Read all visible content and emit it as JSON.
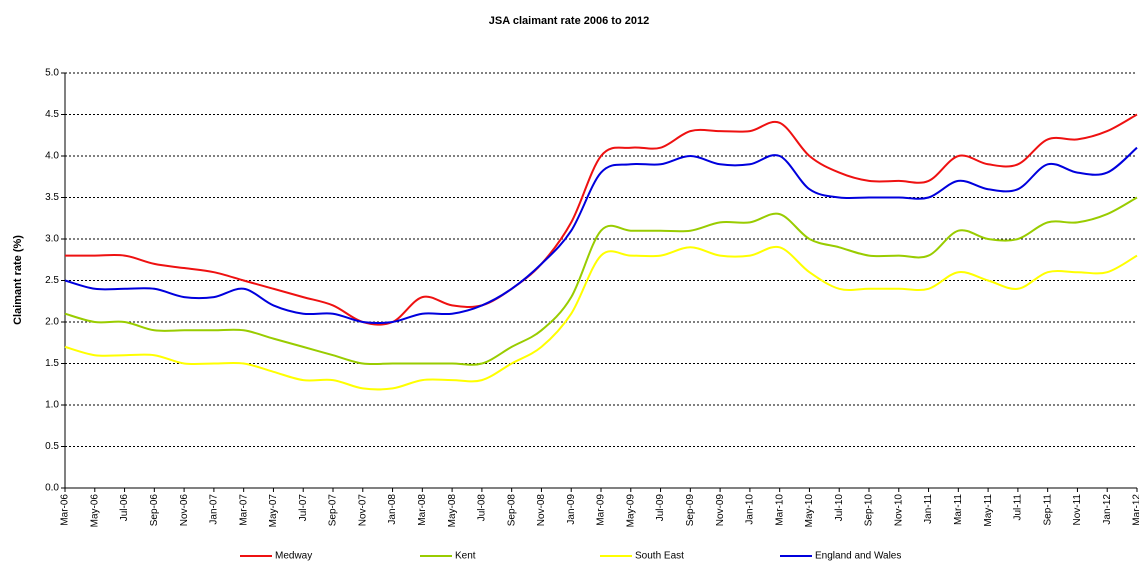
{
  "chart_data": {
    "type": "line",
    "title": "JSA claimant rate 2006 to 2012",
    "y_label": "Claimant rate (%)",
    "categories": [
      "Mar-06",
      "May-06",
      "Jul-06",
      "Sep-06",
      "Nov-06",
      "Jan-07",
      "Mar-07",
      "May-07",
      "Jul-07",
      "Sep-07",
      "Nov-07",
      "Jan-08",
      "Mar-08",
      "May-08",
      "Jul-08",
      "Sep-08",
      "Nov-08",
      "Jan-09",
      "Mar-09",
      "May-09",
      "Jul-09",
      "Sep-09",
      "Nov-09",
      "Jan-10",
      "Mar-10",
      "May-10",
      "Jul-10",
      "Sep-10",
      "Nov-10",
      "Jan-11",
      "Mar-11",
      "May-11",
      "Jul-11",
      "Sep-11",
      "Nov-11",
      "Jan-12",
      "Mar-12"
    ],
    "series": [
      {
        "name": "Medway",
        "color": "#ee1111",
        "values": [
          2.8,
          2.8,
          2.8,
          2.7,
          2.65,
          2.6,
          2.5,
          2.4,
          2.3,
          2.2,
          2.0,
          2.0,
          2.3,
          2.2,
          2.2,
          2.4,
          2.7,
          3.2,
          4.0,
          4.1,
          4.1,
          4.3,
          4.3,
          4.3,
          4.4,
          4.0,
          3.8,
          3.7,
          3.7,
          3.7,
          4.0,
          3.9,
          3.9,
          4.2,
          4.2,
          4.3,
          4.5
        ]
      },
      {
        "name": "Kent",
        "color": "#99cc00",
        "values": [
          2.1,
          2.0,
          2.0,
          1.9,
          1.9,
          1.9,
          1.9,
          1.8,
          1.7,
          1.6,
          1.5,
          1.5,
          1.5,
          1.5,
          1.5,
          1.7,
          1.9,
          2.3,
          3.1,
          3.1,
          3.1,
          3.1,
          3.2,
          3.2,
          3.3,
          3.0,
          2.9,
          2.8,
          2.8,
          2.8,
          3.1,
          3.0,
          3.0,
          3.2,
          3.2,
          3.3,
          3.5
        ]
      },
      {
        "name": "South East",
        "color": "#ffff00",
        "values": [
          1.7,
          1.6,
          1.6,
          1.6,
          1.5,
          1.5,
          1.5,
          1.4,
          1.3,
          1.3,
          1.2,
          1.2,
          1.3,
          1.3,
          1.3,
          1.5,
          1.7,
          2.1,
          2.8,
          2.8,
          2.8,
          2.9,
          2.8,
          2.8,
          2.9,
          2.6,
          2.4,
          2.4,
          2.4,
          2.4,
          2.6,
          2.5,
          2.4,
          2.6,
          2.6,
          2.6,
          2.8
        ]
      },
      {
        "name": "England and Wales",
        "color": "#0000dd",
        "values": [
          2.5,
          2.4,
          2.4,
          2.4,
          2.3,
          2.3,
          2.4,
          2.2,
          2.1,
          2.1,
          2.0,
          2.0,
          2.1,
          2.1,
          2.2,
          2.4,
          2.7,
          3.1,
          3.8,
          3.9,
          3.9,
          4.0,
          3.9,
          3.9,
          4.0,
          3.6,
          3.5,
          3.5,
          3.5,
          3.5,
          3.7,
          3.6,
          3.6,
          3.9,
          3.8,
          3.8,
          4.1
        ]
      }
    ],
    "ylim": [
      0,
      5
    ],
    "yticks": [
      {
        "value": 0,
        "label": "0.0"
      },
      0.5,
      {
        "value": 1,
        "label": "1.0"
      },
      1.5,
      {
        "value": 2,
        "label": "2.0"
      },
      2.5,
      {
        "value": 3,
        "label": "3.0"
      },
      3.5,
      {
        "value": 4,
        "label": "4.0"
      },
      4.5,
      {
        "value": 5,
        "label": "5.0"
      }
    ],
    "grid": true,
    "legend": "bottom"
  }
}
